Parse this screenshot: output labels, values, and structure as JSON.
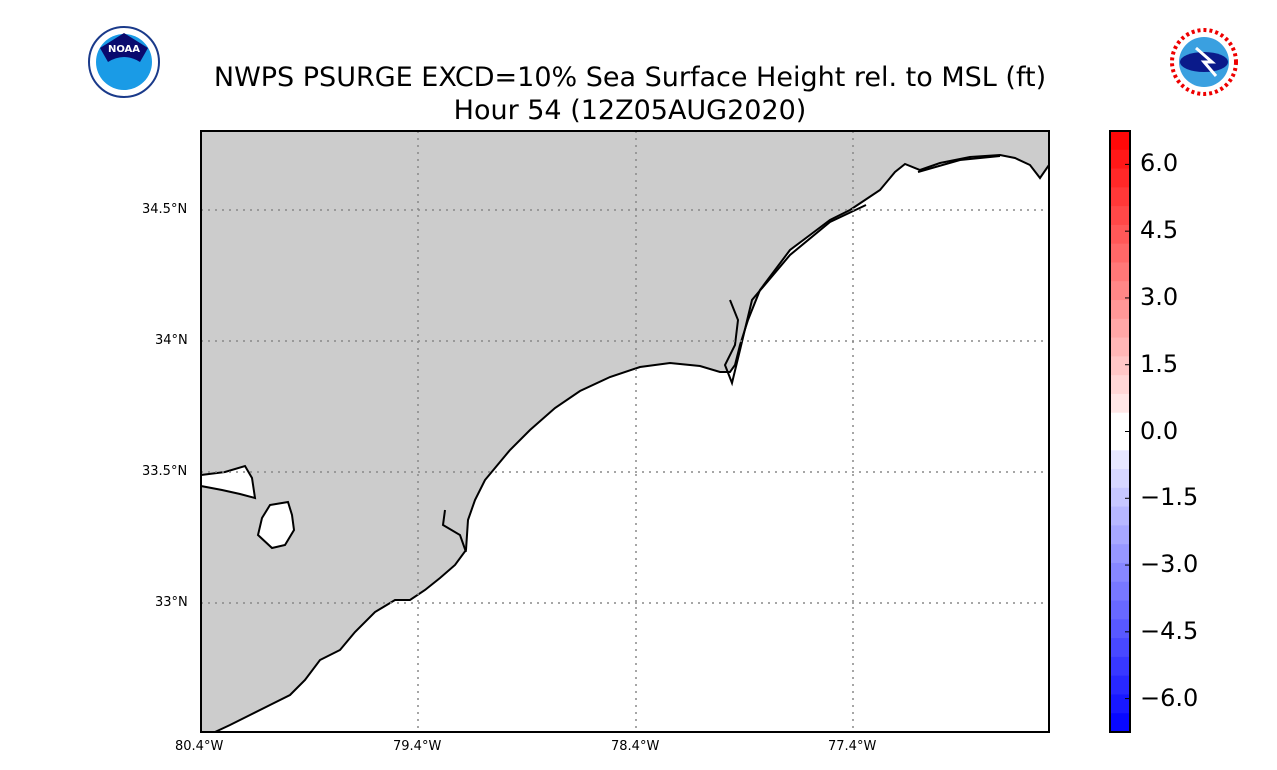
{
  "title": {
    "line1": "NWPS PSURGE EXCD=10% Sea Surface Height rel. to MSL (ft)",
    "line2": "Hour 54 (12Z05AUG2020)"
  },
  "logos": {
    "left": "NOAA",
    "right": "NATIONAL WEATHER SERVICE"
  },
  "map": {
    "lat_labels": [
      "34.5°N",
      "34°N",
      "33.5°N",
      "33°N"
    ],
    "lon_labels": [
      "80.4°W",
      "79.4°W",
      "78.4°W",
      "77.4°W"
    ],
    "land_color": "#cccccc",
    "ocean_color": "#ffffff",
    "lon_range": [
      -80.4,
      -76.5
    ],
    "lat_range": [
      32.6,
      34.8
    ]
  },
  "colorbar": {
    "ticks": [
      "6.0",
      "4.5",
      "3.0",
      "1.5",
      "0.0",
      "−1.5",
      "−3.0",
      "−4.5",
      "−6.0"
    ],
    "range": [
      -6.75,
      6.75
    ],
    "min_color": "#0000ff",
    "mid_color": "#ffffff",
    "max_color": "#ff0000"
  }
}
